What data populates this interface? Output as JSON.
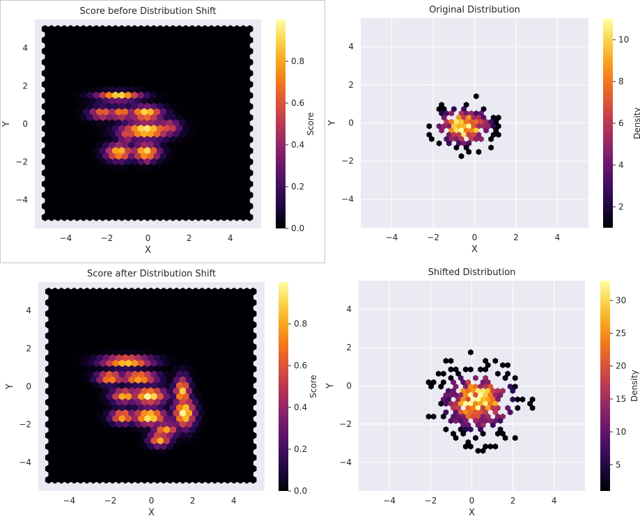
{
  "colors": {
    "frame": "#c8c8c8",
    "axes_bg_seaborn": "#eaeaf2",
    "grid": "#ffffff",
    "score_bg": "#000004",
    "text": "#262626"
  },
  "chart_data": [
    {
      "id": "score_before",
      "type": "heatmap",
      "title": "Score before Distribution Shift",
      "xlabel": "X",
      "ylabel": "Y",
      "xlim": [
        -5.5,
        5.5
      ],
      "ylim": [
        -5.5,
        5.5
      ],
      "xticks": [
        -4,
        -2,
        0,
        2,
        4
      ],
      "yticks": [
        -4,
        -2,
        0,
        2,
        4
      ],
      "grid": false,
      "colormap": "inferno",
      "colorbar": {
        "label": "Score",
        "min": 0.0,
        "max": 1.0,
        "ticks": [
          0.0,
          0.2,
          0.4,
          0.6,
          0.8
        ]
      },
      "hexbin_extent": [
        -5,
        5,
        -5,
        5
      ],
      "score_blobs": [
        {
          "x": -1.4,
          "y": 1.45,
          "sx": 0.75,
          "sy": 0.16,
          "w": 0.95
        },
        {
          "x": -2.2,
          "y": 0.55,
          "sx": 0.45,
          "sy": 0.22,
          "w": 0.7
        },
        {
          "x": -0.1,
          "y": 0.55,
          "sx": 0.55,
          "sy": 0.25,
          "w": 0.95
        },
        {
          "x": -1.3,
          "y": 0.55,
          "sx": 0.45,
          "sy": 0.22,
          "w": 0.75
        },
        {
          "x": -0.1,
          "y": -0.35,
          "sx": 0.8,
          "sy": 0.3,
          "w": 1.0
        },
        {
          "x": 1.0,
          "y": -0.2,
          "sx": 0.4,
          "sy": 0.3,
          "w": 0.6
        },
        {
          "x": -1.0,
          "y": -0.5,
          "sx": 0.35,
          "sy": 0.35,
          "w": 0.6
        },
        {
          "x": -1.4,
          "y": -1.5,
          "sx": 0.45,
          "sy": 0.3,
          "w": 0.9
        },
        {
          "x": -0.1,
          "y": -1.5,
          "sx": 0.45,
          "sy": 0.3,
          "w": 0.95
        },
        {
          "x": -0.1,
          "y": -1.85,
          "sx": 0.25,
          "sy": 0.15,
          "w": 0.6
        }
      ]
    },
    {
      "id": "original",
      "type": "heatmap",
      "title": "Original Distribution",
      "xlabel": "X",
      "ylabel": "Y",
      "xlim": [
        -5.5,
        5.5
      ],
      "ylim": [
        -5.5,
        5.5
      ],
      "xticks": [
        -4,
        -2,
        0,
        2,
        4
      ],
      "yticks": [
        -4,
        -2,
        0,
        2,
        4
      ],
      "grid": true,
      "colormap": "inferno",
      "colorbar": {
        "label": "Density",
        "min": 1,
        "max": 11,
        "ticks": [
          2,
          4,
          6,
          8,
          10
        ]
      },
      "density_center": [
        -0.5,
        -0.2
      ],
      "density_spread": [
        0.8,
        0.6
      ],
      "density_radius": 1.75,
      "density_peak": 11
    },
    {
      "id": "score_after",
      "type": "heatmap",
      "title": "Score after Distribution Shift",
      "xlabel": "X",
      "ylabel": "Y",
      "xlim": [
        -5.5,
        5.5
      ],
      "ylim": [
        -5.5,
        5.5
      ],
      "xticks": [
        -4,
        -2,
        0,
        2,
        4
      ],
      "yticks": [
        -4,
        -2,
        0,
        2,
        4
      ],
      "grid": false,
      "colormap": "inferno",
      "colorbar": {
        "label": "Score",
        "min": 0.0,
        "max": 1.0,
        "ticks": [
          0.0,
          0.2,
          0.4,
          0.6,
          0.8
        ]
      },
      "hexbin_extent": [
        -5,
        5,
        -5,
        5
      ],
      "score_blobs": [
        {
          "x": -1.2,
          "y": 1.3,
          "sx": 0.85,
          "sy": 0.2,
          "w": 0.95
        },
        {
          "x": -2.0,
          "y": 0.45,
          "sx": 0.45,
          "sy": 0.22,
          "w": 0.85
        },
        {
          "x": -0.6,
          "y": 0.45,
          "sx": 0.6,
          "sy": 0.22,
          "w": 0.9
        },
        {
          "x": -1.3,
          "y": -0.5,
          "sx": 0.45,
          "sy": 0.25,
          "w": 0.85
        },
        {
          "x": -0.1,
          "y": -0.5,
          "sx": 0.55,
          "sy": 0.3,
          "w": 1.0
        },
        {
          "x": 1.5,
          "y": -0.3,
          "sx": 0.25,
          "sy": 0.55,
          "w": 0.9
        },
        {
          "x": 1.6,
          "y": -1.4,
          "sx": 0.35,
          "sy": 0.55,
          "w": 1.0
        },
        {
          "x": -1.4,
          "y": -1.6,
          "sx": 0.4,
          "sy": 0.25,
          "w": 0.85
        },
        {
          "x": -0.1,
          "y": -1.6,
          "sx": 0.55,
          "sy": 0.3,
          "w": 1.0
        },
        {
          "x": 0.4,
          "y": -2.8,
          "sx": 0.35,
          "sy": 0.25,
          "w": 0.85
        },
        {
          "x": 0.7,
          "y": -2.3,
          "sx": 0.4,
          "sy": 0.25,
          "w": 0.8
        }
      ]
    },
    {
      "id": "shifted",
      "type": "heatmap",
      "title": "Shifted Distribution",
      "xlabel": "X",
      "ylabel": "Y",
      "xlim": [
        -5.5,
        5.5
      ],
      "ylim": [
        -5.5,
        5.5
      ],
      "xticks": [
        -4,
        -2,
        0,
        2,
        4
      ],
      "yticks": [
        -4,
        -2,
        0,
        2,
        4
      ],
      "grid": true,
      "colormap": "inferno",
      "colorbar": {
        "label": "Density",
        "min": 1,
        "max": 33,
        "ticks": [
          5,
          10,
          15,
          20,
          25,
          30
        ]
      },
      "density_center": [
        0.3,
        -0.8
      ],
      "density_spread": [
        1.0,
        0.9
      ],
      "density_radius": 2.7,
      "density_peak": 33
    }
  ]
}
